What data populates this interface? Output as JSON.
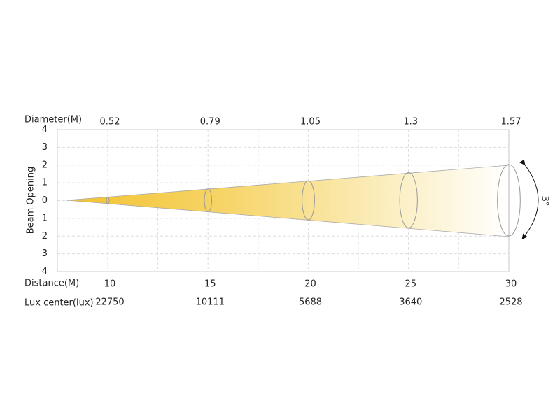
{
  "diameter_label": "Diameter(M)",
  "distance_label": "Distance(M)",
  "lux_label": "Lux center(lux)",
  "y_axis_label": "Beam Opening",
  "y_ticks": [
    "4",
    "3",
    "2",
    "1",
    "0",
    "1",
    "2",
    "3",
    "4"
  ],
  "columns": [
    {
      "distance": "10",
      "diameter": "0.52",
      "lux": "22750"
    },
    {
      "distance": "15",
      "diameter": "0.79",
      "lux": "10111"
    },
    {
      "distance": "20",
      "diameter": "1.05",
      "lux": "5688"
    },
    {
      "distance": "25",
      "diameter": "1.3",
      "lux": "3640"
    },
    {
      "distance": "30",
      "diameter": "1.57",
      "lux": "2528"
    }
  ],
  "angle": "3°"
}
